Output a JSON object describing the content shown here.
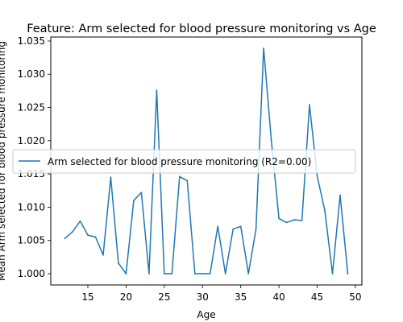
{
  "chart_data": {
    "type": "line",
    "title": "Feature: Arm selected for blood pressure monitoring vs Age",
    "xlabel": "Age",
    "ylabel": "Mean Arm selected for blood pressure monitoring",
    "xlim": [
      10.15,
      50.85
    ],
    "ylim": [
      0.9983,
      1.0356
    ],
    "x_ticks": [
      15,
      20,
      25,
      30,
      35,
      40,
      45,
      50
    ],
    "x_tick_labels": [
      "15",
      "20",
      "25",
      "30",
      "35",
      "40",
      "45",
      "50"
    ],
    "y_ticks": [
      1.0,
      1.005,
      1.01,
      1.015,
      1.02,
      1.025,
      1.03,
      1.035
    ],
    "y_tick_labels": [
      "1.000",
      "1.005",
      "1.010",
      "1.015",
      "1.020",
      "1.025",
      "1.030",
      "1.035"
    ],
    "grid": false,
    "legend_placement": "center-left",
    "series": [
      {
        "name": "Arm selected for blood pressure monitoring (R2=0.00)",
        "color": "#1f77b4",
        "x": [
          12,
          13,
          14,
          15,
          16,
          17,
          18,
          19,
          20,
          21,
          22,
          23,
          24,
          25,
          26,
          27,
          28,
          29,
          30,
          31,
          32,
          33,
          34,
          35,
          36,
          37,
          38,
          39,
          40,
          41,
          42,
          43,
          44,
          45,
          46,
          47,
          48,
          49
        ],
        "y": [
          1.0053,
          1.0063,
          1.0079,
          1.0058,
          1.0055,
          1.0028,
          1.0145,
          1.0016,
          1.0,
          1.011,
          1.0122,
          1.0,
          1.0276,
          1.0,
          1.0,
          1.0146,
          1.014,
          1.0,
          1.0,
          1.0,
          1.0071,
          1.0,
          1.0067,
          1.0071,
          1.0,
          1.0067,
          1.0339,
          1.0201,
          1.0083,
          1.0077,
          1.0081,
          1.008,
          1.0254,
          1.0147,
          1.0095,
          1.0,
          1.0118,
          1.0
        ]
      }
    ]
  }
}
